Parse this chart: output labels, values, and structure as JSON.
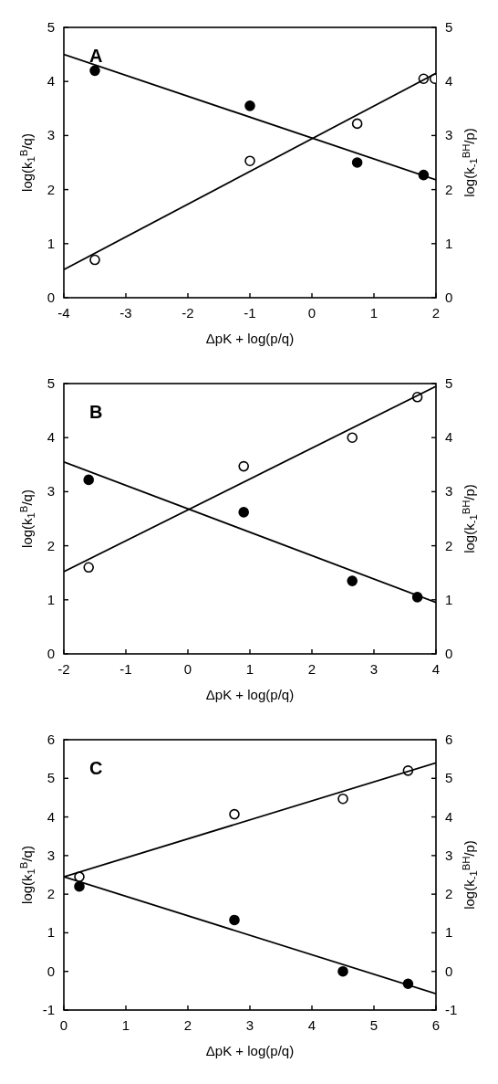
{
  "chart_data": [
    {
      "type": "scatter",
      "xlabel": "ΔpK + log(p/q)",
      "ylabel": "log(k$_{1}$$^{B}$/q)",
      "y2label": "log(k$_{-1}$$^{BH}$/p)",
      "annotations": [
        "A"
      ],
      "xlim": [
        -4,
        2
      ],
      "xticks": [
        -4,
        -3,
        -2,
        -1,
        0,
        1,
        2
      ],
      "ylim": [
        0,
        5
      ],
      "yticks": [
        0,
        1,
        2,
        3,
        4,
        5
      ],
      "y2lim": [
        0,
        5
      ],
      "y2ticks": [
        0,
        1,
        2,
        3,
        4,
        5
      ],
      "marker": "circle",
      "series": [
        {
          "type": "scatter",
          "color": "#000000",
          "x": [
            -3.5,
            -1,
            0.73,
            1.8
          ],
          "values": [
            4.2,
            3.55,
            2.5,
            2.27
          ]
        },
        {
          "type": "line",
          "color": "#000000",
          "marker": "none",
          "x": [
            -4,
            2
          ],
          "values": [
            4.5,
            2.18
          ]
        },
        {
          "type": "scatter",
          "color": "#ffffff",
          "x": [
            -3.5,
            -1,
            0.73,
            1.8,
            1.98
          ],
          "values": [
            0.7,
            2.53,
            3.22,
            4.05,
            4.05
          ]
        },
        {
          "type": "line",
          "color": "#000000",
          "marker": "none",
          "x": [
            -4,
            2
          ],
          "values": [
            0.52,
            4.15
          ]
        }
      ]
    },
    {
      "type": "scatter",
      "xlabel": "ΔpK + log(p/q)",
      "ylabel": "log(k$_{1}$$^{B}$/q)",
      "y2label": "log(k$_{-1}$$^{BH}$/p)",
      "annotations": [
        "B"
      ],
      "xlim": [
        -2,
        4
      ],
      "xticks": [
        -2,
        -1,
        0,
        1,
        2,
        3,
        4
      ],
      "ylim": [
        0,
        5
      ],
      "yticks": [
        0,
        1,
        2,
        3,
        4,
        5
      ],
      "y2lim": [
        0,
        5
      ],
      "y2ticks": [
        0,
        1,
        2,
        3,
        4,
        5
      ],
      "marker": "circle",
      "series": [
        {
          "type": "scatter",
          "color": "#000000",
          "x": [
            -1.6,
            0.9,
            2.65,
            3.7
          ],
          "values": [
            3.22,
            2.62,
            1.35,
            1.05
          ]
        },
        {
          "type": "line",
          "color": "#000000",
          "marker": "none",
          "x": [
            -2,
            4
          ],
          "values": [
            3.55,
            0.95
          ]
        },
        {
          "type": "scatter",
          "color": "#ffffff",
          "x": [
            -1.6,
            0.9,
            2.65,
            3.7
          ],
          "values": [
            1.6,
            3.47,
            4.0,
            4.75
          ]
        },
        {
          "type": "line",
          "color": "#000000",
          "marker": "none",
          "x": [
            -2,
            4
          ],
          "values": [
            1.52,
            4.95
          ]
        }
      ]
    },
    {
      "type": "scatter",
      "xlabel": "ΔpK + log(p/q)",
      "ylabel": "log(k$_{1}$$^{B}$/q)",
      "y2label": "log(k$_{-1}$$^{BH}$/p)",
      "annotations": [
        "C"
      ],
      "xlim": [
        0,
        6
      ],
      "xticks": [
        0,
        1,
        2,
        3,
        4,
        5,
        6
      ],
      "ylim": [
        -1,
        6
      ],
      "yticks": [
        -1,
        0,
        1,
        2,
        3,
        4,
        5,
        6
      ],
      "y2lim": [
        -1,
        6
      ],
      "y2ticks": [
        -1,
        0,
        1,
        2,
        3,
        4,
        5,
        6
      ],
      "marker": "circle",
      "series": [
        {
          "type": "scatter",
          "color": "#000000",
          "x": [
            0.25,
            2.75,
            4.5,
            5.55
          ],
          "values": [
            2.2,
            1.33,
            0.0,
            -0.32
          ]
        },
        {
          "type": "line",
          "color": "#000000",
          "marker": "none",
          "x": [
            0,
            6
          ],
          "values": [
            2.45,
            -0.58
          ]
        },
        {
          "type": "scatter",
          "color": "#ffffff",
          "x": [
            0.25,
            2.75,
            4.5,
            5.55
          ],
          "values": [
            2.45,
            4.07,
            4.47,
            5.2
          ]
        },
        {
          "type": "line",
          "color": "#000000",
          "marker": "none",
          "x": [
            0,
            6
          ],
          "values": [
            2.45,
            5.4
          ]
        }
      ]
    }
  ]
}
